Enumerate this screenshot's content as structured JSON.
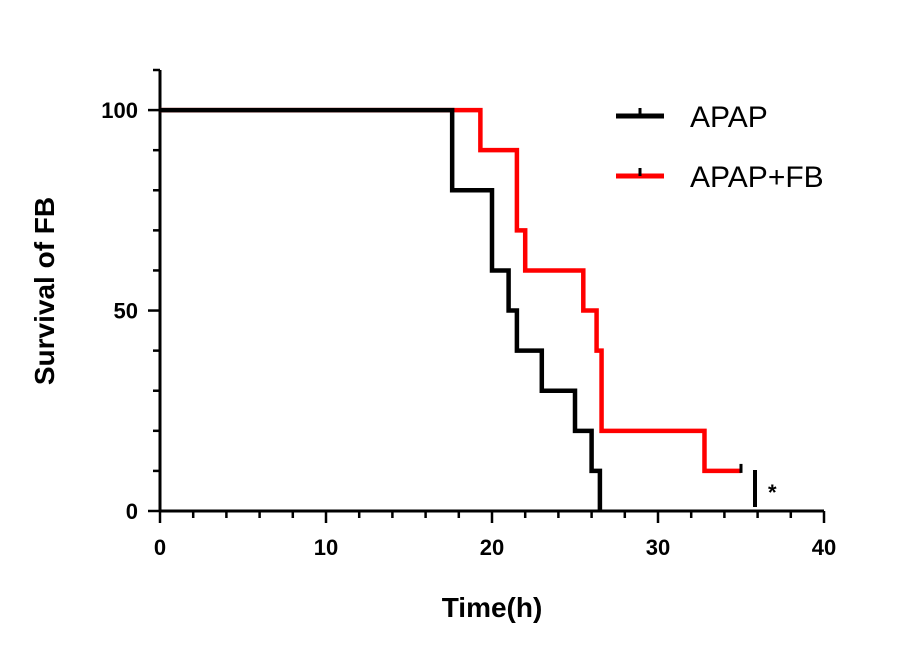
{
  "chart_data": {
    "type": "line",
    "subtype": "step survival curve",
    "xlabel": "Time(h)",
    "ylabel": "Survival of FB",
    "xlim": [
      0,
      40
    ],
    "ylim": [
      0,
      110
    ],
    "xticks": [
      "0",
      "10",
      "20",
      "30",
      "40"
    ],
    "yticks": [
      "0",
      "50",
      "100"
    ],
    "grid": false,
    "legend_position": "top-right",
    "series": [
      {
        "name": "APAP",
        "color": "#000000",
        "x": [
          0,
          17.6,
          20.0,
          21.0,
          21.5,
          23.0,
          25.0,
          26.0,
          26.5
        ],
        "y": [
          100,
          80,
          60,
          50,
          40,
          30,
          20,
          10,
          0
        ]
      },
      {
        "name": "APAP+FB",
        "color": "#ff0000",
        "x": [
          0,
          19.3,
          21.5,
          22.0,
          25.5,
          26.3,
          26.6,
          32.8,
          35.0
        ],
        "y": [
          100,
          90,
          70,
          60,
          50,
          40,
          20,
          10,
          10
        ],
        "censored_at": 35.0
      }
    ],
    "annotation": "*"
  }
}
